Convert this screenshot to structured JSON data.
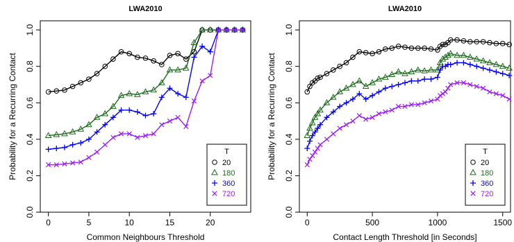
{
  "chart_data": [
    {
      "type": "line",
      "title": "LWA2010",
      "xlabel": "Common Neighbours Threshold",
      "ylabel": "Probability for a Recurring Contact",
      "xlim": [
        -1,
        25
      ],
      "ylim": [
        0,
        1.05
      ],
      "x_ticks": [
        "0",
        "5",
        "10",
        "15",
        "20"
      ],
      "y_ticks": [
        "0.0",
        "0.2",
        "0.4",
        "0.6",
        "0.8",
        "1.0"
      ],
      "legend": {
        "title": "T",
        "position": "bottom-right"
      },
      "x": [
        0,
        1,
        2,
        3,
        4,
        5,
        6,
        7,
        8,
        9,
        10,
        11,
        12,
        13,
        14,
        15,
        16,
        17,
        18,
        19,
        20,
        21,
        22,
        23,
        24
      ],
      "series": [
        {
          "name": "20",
          "marker": "circle",
          "color": "#000000",
          "values": [
            0.66,
            0.665,
            0.67,
            0.69,
            0.71,
            0.73,
            0.76,
            0.8,
            0.84,
            0.88,
            0.87,
            0.85,
            0.845,
            0.83,
            0.81,
            0.86,
            0.87,
            0.84,
            0.88,
            1.0,
            1.0,
            1.0,
            1.0,
            1.0,
            1.0
          ]
        },
        {
          "name": "180",
          "marker": "triangle",
          "color": "#1a6b1a",
          "values": [
            0.42,
            0.425,
            0.43,
            0.44,
            0.455,
            0.48,
            0.52,
            0.54,
            0.58,
            0.64,
            0.65,
            0.645,
            0.66,
            0.67,
            0.71,
            0.78,
            0.78,
            0.79,
            0.93,
            1.0,
            1.0,
            1.0,
            1.0,
            1.0,
            1.0
          ]
        },
        {
          "name": "360",
          "marker": "plus",
          "color": "#0000ff",
          "values": [
            0.345,
            0.35,
            0.355,
            0.37,
            0.38,
            0.4,
            0.44,
            0.48,
            0.52,
            0.56,
            0.56,
            0.55,
            0.53,
            0.54,
            0.63,
            0.68,
            0.65,
            0.63,
            0.85,
            0.91,
            0.88,
            1.0,
            1.0,
            1.0,
            1.0
          ]
        },
        {
          "name": "720",
          "marker": "cross",
          "color": "#9a1aff",
          "values": [
            0.26,
            0.26,
            0.265,
            0.27,
            0.275,
            0.3,
            0.33,
            0.37,
            0.41,
            0.43,
            0.43,
            0.41,
            0.42,
            0.43,
            0.48,
            0.5,
            0.52,
            0.47,
            0.61,
            0.72,
            0.75,
            1.0,
            1.0,
            1.0,
            1.0
          ]
        }
      ]
    },
    {
      "type": "line",
      "title": "LWA2010",
      "xlabel": "Contact Length Threshold [in Seconds]",
      "ylabel": "Probability for a Recurring Contact",
      "xlim": [
        -60,
        1560
      ],
      "ylim": [
        0,
        1.05
      ],
      "x_ticks": [
        "0",
        "500",
        "1000",
        "1500"
      ],
      "y_ticks": [
        "0.0",
        "0.2",
        "0.4",
        "0.6",
        "0.8",
        "1.0"
      ],
      "legend": {
        "title": "T",
        "position": "bottom-right"
      },
      "x": [
        0,
        20,
        40,
        60,
        80,
        100,
        150,
        200,
        250,
        300,
        350,
        400,
        450,
        500,
        550,
        600,
        650,
        700,
        750,
        800,
        850,
        900,
        950,
        1000,
        1020,
        1040,
        1060,
        1080,
        1100,
        1150,
        1200,
        1250,
        1300,
        1350,
        1400,
        1450,
        1500,
        1550
      ],
      "series": [
        {
          "name": "20",
          "marker": "circle",
          "color": "#000000",
          "values": [
            0.66,
            0.69,
            0.71,
            0.72,
            0.735,
            0.74,
            0.76,
            0.78,
            0.8,
            0.82,
            0.85,
            0.88,
            0.875,
            0.87,
            0.88,
            0.895,
            0.9,
            0.91,
            0.905,
            0.9,
            0.9,
            0.9,
            0.895,
            0.89,
            0.91,
            0.92,
            0.92,
            0.93,
            0.945,
            0.945,
            0.94,
            0.935,
            0.935,
            0.935,
            0.93,
            0.925,
            0.925,
            0.92
          ]
        },
        {
          "name": "180",
          "marker": "triangle",
          "color": "#1a6b1a",
          "values": [
            0.42,
            0.46,
            0.49,
            0.52,
            0.54,
            0.56,
            0.6,
            0.63,
            0.66,
            0.68,
            0.7,
            0.72,
            0.69,
            0.71,
            0.73,
            0.74,
            0.755,
            0.77,
            0.76,
            0.77,
            0.78,
            0.775,
            0.78,
            0.78,
            0.82,
            0.84,
            0.85,
            0.86,
            0.87,
            0.86,
            0.86,
            0.85,
            0.84,
            0.83,
            0.82,
            0.81,
            0.8,
            0.79
          ]
        },
        {
          "name": "360",
          "marker": "plus",
          "color": "#0000ff",
          "values": [
            0.35,
            0.39,
            0.42,
            0.44,
            0.46,
            0.48,
            0.52,
            0.55,
            0.58,
            0.6,
            0.62,
            0.65,
            0.62,
            0.64,
            0.66,
            0.68,
            0.69,
            0.7,
            0.71,
            0.72,
            0.72,
            0.73,
            0.73,
            0.74,
            0.78,
            0.8,
            0.8,
            0.81,
            0.81,
            0.82,
            0.82,
            0.81,
            0.8,
            0.79,
            0.78,
            0.77,
            0.76,
            0.75
          ]
        },
        {
          "name": "720",
          "marker": "cross",
          "color": "#9a1aff",
          "values": [
            0.26,
            0.29,
            0.31,
            0.33,
            0.35,
            0.37,
            0.4,
            0.43,
            0.46,
            0.48,
            0.5,
            0.53,
            0.51,
            0.52,
            0.54,
            0.55,
            0.56,
            0.58,
            0.58,
            0.59,
            0.59,
            0.6,
            0.61,
            0.62,
            0.64,
            0.65,
            0.66,
            0.68,
            0.7,
            0.71,
            0.71,
            0.7,
            0.69,
            0.68,
            0.66,
            0.65,
            0.64,
            0.62
          ]
        }
      ]
    }
  ]
}
